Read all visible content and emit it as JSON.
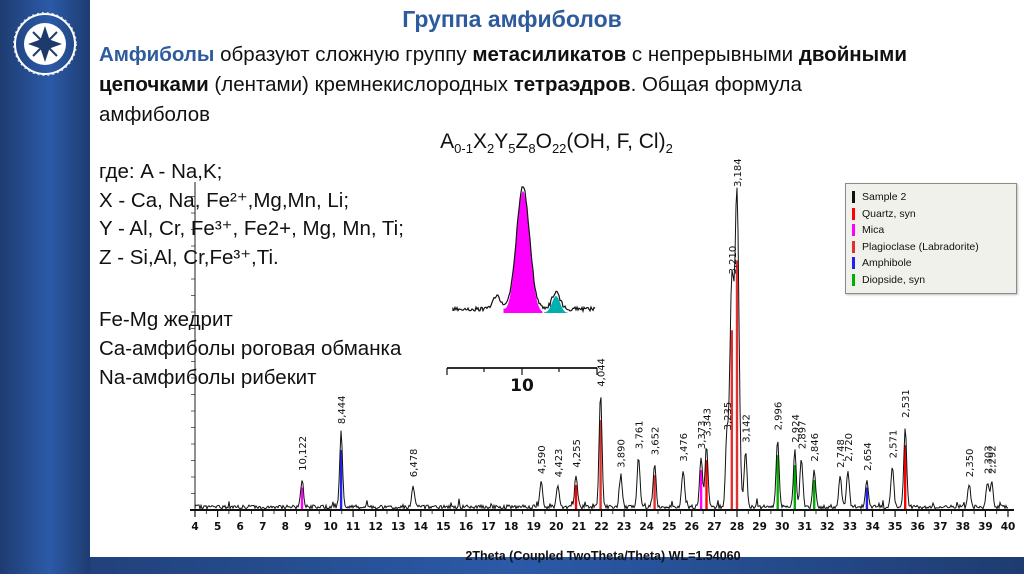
{
  "slide": {
    "title": "Группа амфиболов",
    "intro_lines": [
      [
        {
          "t": "Амфиболы",
          "b": 1,
          "c": "#2e5b9d"
        },
        {
          "t": " образуют сложную группу "
        },
        {
          "t": "метасиликатов",
          "b": 1
        },
        {
          "t": " с непрерывными "
        },
        {
          "t": "двойными",
          "b": 1
        }
      ],
      [
        {
          "t": "цепочками",
          "b": 1
        },
        {
          "t": " (лентами) кремнекислородных "
        },
        {
          "t": "тетраэдров",
          "b": 1
        },
        {
          "t": ". Общая формула"
        }
      ],
      [
        {
          "t": "амфиболов"
        }
      ]
    ],
    "formula_segments": [
      {
        "t": "A"
      },
      {
        "t": "0-1",
        "sub": 1
      },
      {
        "t": "X"
      },
      {
        "t": "2",
        "sub": 1
      },
      {
        "t": "Y"
      },
      {
        "t": "5",
        "sub": 1
      },
      {
        "t": "Z"
      },
      {
        "t": "8",
        "sub": 1
      },
      {
        "t": "O"
      },
      {
        "t": "22",
        "sub": 1
      },
      {
        "t": "(OH, F, Cl)"
      },
      {
        "t": "2",
        "sub": 1
      }
    ],
    "definitions": [
      "где: A - Na,K;",
      "X - Ca, Na, Fe²⁺,Mg,Mn, Li;",
      "Y - Al, Cr, Fe³⁺, Fe2+, Mg, Mn, Ti;",
      "Z - Si,Al, Cr,Fe³⁺,Ti."
    ],
    "minerals": [
      "Fe-Mg жедрит",
      "Ca-амфиболы роговая обманка",
      "Na-амфиболы рибекит"
    ]
  },
  "chart_data": {
    "type": "line",
    "title": "",
    "xlabel": "2Theta (Coupled TwoTheta/Theta) WL=1.54060",
    "ylabel": "",
    "grid": false,
    "wavelength": 1.5406,
    "x_axis": {
      "min": 4,
      "max": 40,
      "tick_step": 1
    },
    "legend_position": "top-right",
    "legend": [
      {
        "label": "Sample 2",
        "color": "#111111"
      },
      {
        "label": "Quartz, syn",
        "color": "#ff0000"
      },
      {
        "label": "Mica",
        "color": "#ff00ff"
      },
      {
        "label": "Plagioclase (Labradorite)",
        "color": "#e03030"
      },
      {
        "label": "Amphibole",
        "color": "#2222ee"
      },
      {
        "label": "Diopside, syn",
        "color": "#00b000"
      }
    ],
    "peaks": [
      {
        "d": "10,122",
        "two_theta": 8.74,
        "intensity": 9,
        "phase_color": "#ff00ff"
      },
      {
        "d": "8,444",
        "two_theta": 10.47,
        "intensity": 24,
        "phase_color": "#2222ee"
      },
      {
        "d": "6,478",
        "two_theta": 13.66,
        "intensity": 7
      },
      {
        "d": "4,590",
        "two_theta": 19.33,
        "intensity": 8
      },
      {
        "d": "4,423",
        "two_theta": 20.07,
        "intensity": 7
      },
      {
        "d": "4,255",
        "two_theta": 20.87,
        "intensity": 10,
        "phase_color": "#ff0000"
      },
      {
        "d": "4,044",
        "two_theta": 21.96,
        "intensity": 36,
        "phase_color": "#e03030"
      },
      {
        "d": "3,890",
        "two_theta": 22.85,
        "intensity": 10
      },
      {
        "d": "3,761",
        "two_theta": 23.64,
        "intensity": 16
      },
      {
        "d": "3,652",
        "two_theta": 24.35,
        "intensity": 14,
        "phase_color": "#e03030"
      },
      {
        "d": "3,476",
        "two_theta": 25.61,
        "intensity": 12
      },
      {
        "d": "3,373",
        "two_theta": 26.41,
        "intensity": 16,
        "phase_color": "#ff00ff"
      },
      {
        "d": "3,343",
        "two_theta": 26.65,
        "intensity": 20,
        "phase_color": "#ff0000"
      },
      {
        "d": "3,235",
        "two_theta": 27.55,
        "intensity": 22
      },
      {
        "d": "3,210",
        "two_theta": 27.77,
        "intensity": 72,
        "phase_color": "#e03030"
      },
      {
        "d": "3,184",
        "two_theta": 28.0,
        "intensity": 100,
        "phase_color": "#e03030"
      },
      {
        "d": "3,142",
        "two_theta": 28.38,
        "intensity": 18
      },
      {
        "d": "2,996",
        "two_theta": 29.8,
        "intensity": 22,
        "phase_color": "#00b000"
      },
      {
        "d": "2,924",
        "two_theta": 30.56,
        "intensity": 18,
        "phase_color": "#00b000"
      },
      {
        "d": "2,897",
        "two_theta": 30.85,
        "intensity": 16
      },
      {
        "d": "2,846",
        "two_theta": 31.42,
        "intensity": 12,
        "phase_color": "#00b000"
      },
      {
        "d": "2,748",
        "two_theta": 32.57,
        "intensity": 10
      },
      {
        "d": "2,720",
        "two_theta": 32.91,
        "intensity": 12
      },
      {
        "d": "2,654",
        "two_theta": 33.75,
        "intensity": 9,
        "phase_color": "#2222ee"
      },
      {
        "d": "2,571",
        "two_theta": 34.88,
        "intensity": 13
      },
      {
        "d": "2,531",
        "two_theta": 35.45,
        "intensity": 26,
        "phase_color": "#ff0000"
      },
      {
        "d": "2,350",
        "two_theta": 38.28,
        "intensity": 7
      },
      {
        "d": "2,303",
        "two_theta": 39.09,
        "intensity": 8
      },
      {
        "d": "2,292",
        "two_theta": 39.28,
        "intensity": 8
      }
    ],
    "inset": {
      "tick_label": "10",
      "main_peak_color": "#ff00ff",
      "secondary_peak_color": "#00b0b0"
    }
  }
}
